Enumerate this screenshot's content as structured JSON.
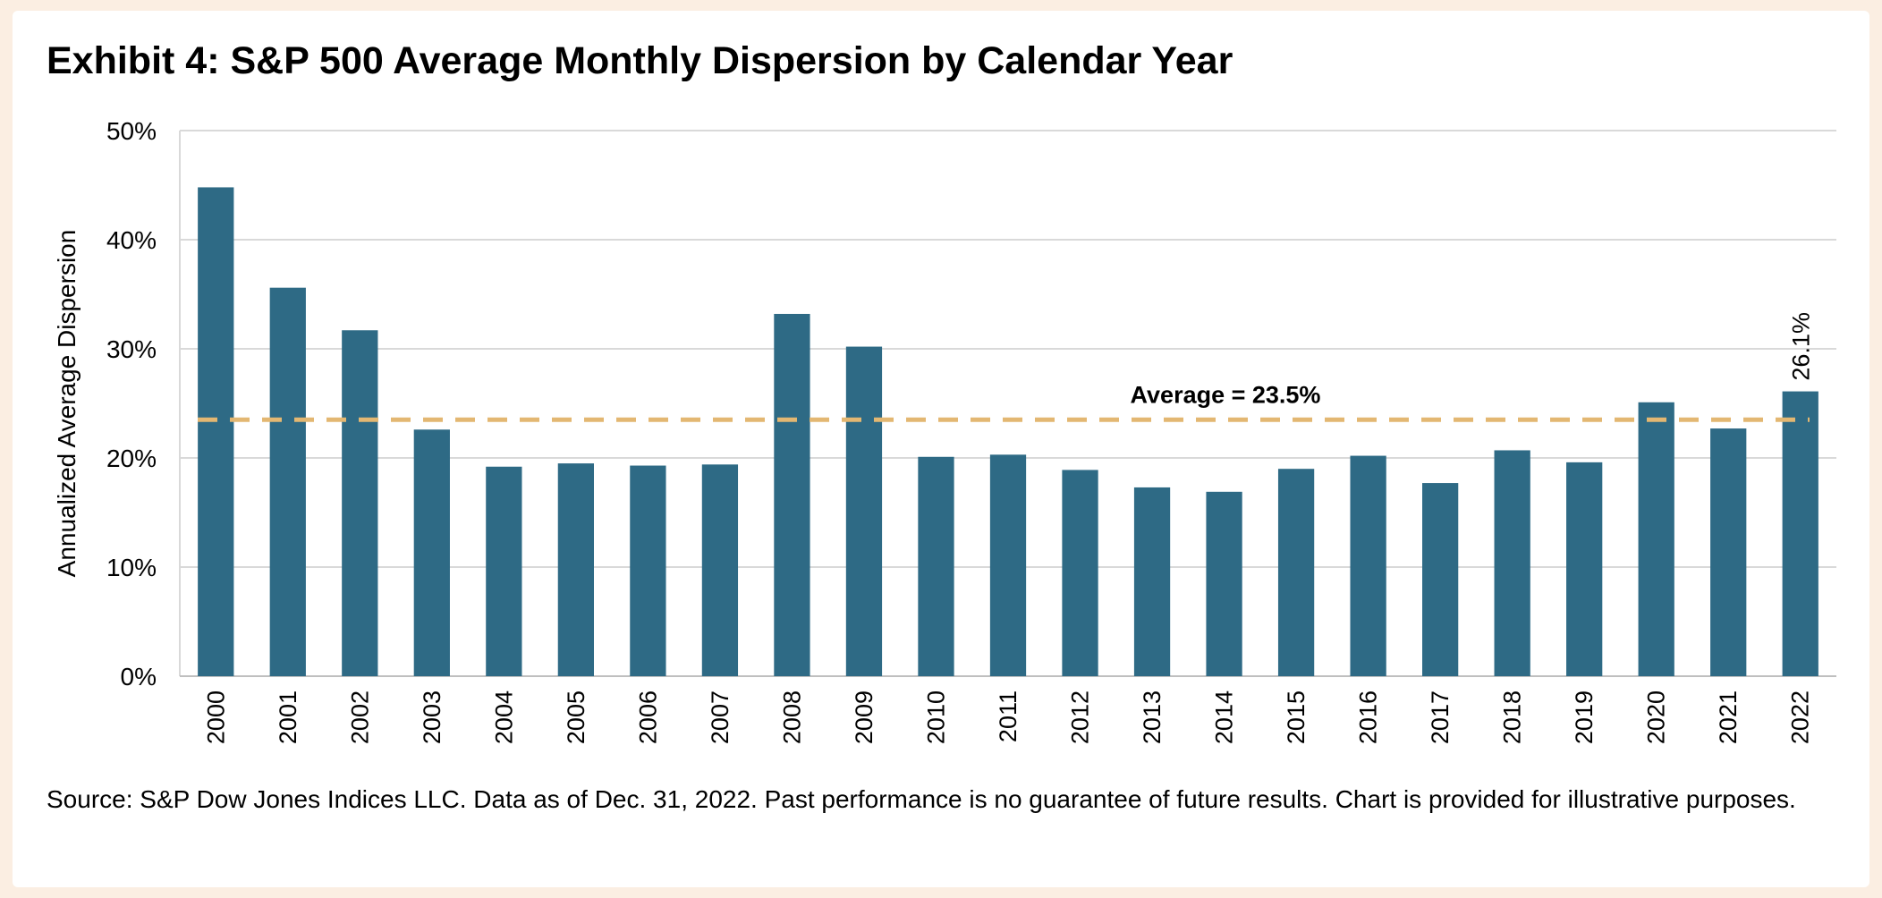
{
  "chart_data": {
    "type": "bar",
    "title": "Exhibit 4: S&P 500 Average Monthly Dispersion by Calendar Year",
    "ylabel": "Annualized Average Dispersion",
    "xlabel": "",
    "ylim": [
      0,
      50
    ],
    "yticks": [
      0,
      10,
      20,
      30,
      40,
      50
    ],
    "ytick_labels": [
      "0%",
      "10%",
      "20%",
      "30%",
      "40%",
      "50%"
    ],
    "grid": true,
    "bar_color": "#2e6a85",
    "categories": [
      "2000",
      "2001",
      "2002",
      "2003",
      "2004",
      "2005",
      "2006",
      "2007",
      "2008",
      "2009",
      "2010",
      "2011",
      "2012",
      "2013",
      "2014",
      "2015",
      "2016",
      "2017",
      "2018",
      "2019",
      "2020",
      "2021",
      "2022"
    ],
    "values": [
      44.8,
      35.6,
      31.7,
      22.6,
      19.2,
      19.5,
      19.3,
      19.4,
      33.2,
      30.2,
      20.1,
      20.3,
      18.9,
      17.3,
      16.9,
      19.0,
      20.2,
      17.7,
      20.7,
      19.6,
      25.1,
      22.7,
      26.1
    ],
    "data_labels": [
      {
        "category": "2022",
        "text": "26.1%"
      }
    ],
    "reference_line": {
      "value": 23.5,
      "label": "Average = 23.5%",
      "style": "dashed",
      "color": "#e3b772"
    }
  },
  "footnote": "Source: S&P Dow Jones Indices LLC.  Data as of Dec. 31, 2022.  Past performance is no guarantee of future results.  Chart is provided for illustrative purposes."
}
